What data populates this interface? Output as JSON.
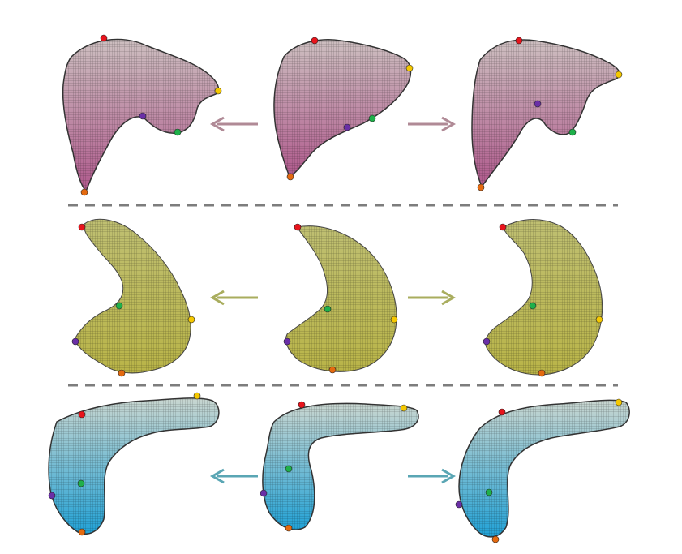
{
  "figure": {
    "rows": [
      {
        "organ": "liver",
        "color_top": "#cdbfc0",
        "color_bottom": "#b05a8d",
        "arrow_color": "#b08a96"
      },
      {
        "organ": "stomach",
        "color_top": "#bfbf72",
        "color_bottom": "#b9b448",
        "arrow_color": "#a9ad5e"
      },
      {
        "organ": "pancreas",
        "color_top": "#c9d6d0",
        "color_bottom": "#22a2d6",
        "arrow_color": "#5aa6b4"
      }
    ],
    "separator_color": "#7d7d7d",
    "landmark_colors": {
      "red": "#e8141c",
      "yellow": "#f5c800",
      "green": "#1fb04a",
      "purple": "#6a2fa6",
      "orange": "#e46a10"
    }
  }
}
